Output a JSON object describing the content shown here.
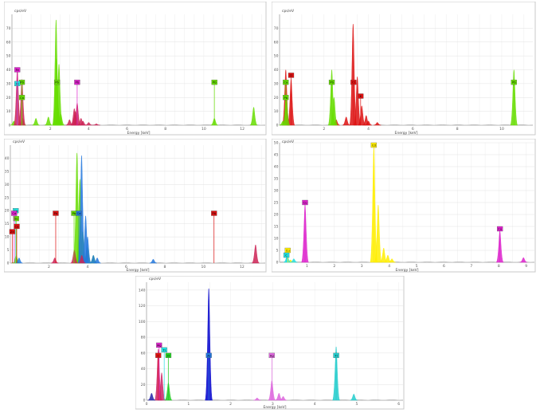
{
  "chart_data": [
    {
      "type": "area",
      "ylabel": "cps/eV",
      "xlabel": "Energy [keV]",
      "xlim": [
        0,
        13.2
      ],
      "ylim": [
        0,
        80
      ],
      "xticks": [
        2,
        4,
        6,
        8,
        10,
        12
      ],
      "yticks": [
        0,
        10,
        20,
        30,
        40,
        50,
        60,
        70
      ],
      "grid": true,
      "series": [
        {
          "color": "#66dd00",
          "values": [
            [
              0.1,
              3
            ],
            [
              0.55,
              5
            ],
            [
              1.25,
              5
            ],
            [
              1.9,
              6
            ],
            [
              2.35,
              2
            ],
            [
              2.32,
              48
            ],
            [
              2.3,
              76
            ],
            [
              2.4,
              14
            ],
            [
              2.45,
              44
            ],
            [
              2.55,
              8
            ],
            [
              10.55,
              5
            ],
            [
              12.6,
              13
            ]
          ]
        },
        {
          "color": "#cc2255",
          "values": [
            [
              0.28,
              40
            ],
            [
              0.52,
              33
            ],
            [
              3.0,
              4
            ],
            [
              3.3,
              3
            ],
            [
              3.25,
              12
            ],
            [
              3.4,
              16
            ],
            [
              3.6,
              5
            ],
            [
              3.3,
              10
            ],
            [
              3.7,
              3
            ],
            [
              4.0,
              2
            ],
            [
              4.4,
              1
            ]
          ]
        }
      ],
      "annotations": [
        "Pb",
        "Cl",
        "Fe",
        "Ca",
        "Pb",
        "Pb",
        "Pb"
      ]
    },
    {
      "type": "area",
      "ylabel": "cps/eV",
      "xlabel": "Energy [keV]",
      "xlim": [
        0,
        11.4
      ],
      "ylim": [
        0,
        80
      ],
      "xticks": [
        2,
        4,
        6,
        8,
        10
      ],
      "yticks": [
        0,
        10,
        20,
        30,
        40,
        50,
        60,
        70
      ],
      "grid": true,
      "series": [
        {
          "color": "#dd1111",
          "values": [
            [
              0.52,
              33
            ],
            [
              0.28,
              40
            ],
            [
              2.55,
              4
            ],
            [
              3.0,
              6
            ],
            [
              3.31,
              73
            ],
            [
              3.5,
              35
            ],
            [
              3.7,
              14
            ],
            [
              3.9,
              7
            ],
            [
              4.0,
              3
            ],
            [
              4.4,
              2
            ]
          ]
        },
        {
          "color": "#66dd00",
          "values": [
            [
              0.15,
              3
            ],
            [
              0.3,
              22
            ],
            [
              2.35,
              40
            ],
            [
              2.45,
              20
            ],
            [
              10.55,
              40
            ]
          ]
        }
      ],
      "annotations": [
        "Ca",
        "Cl",
        "Pb",
        "Pb",
        "Cl",
        "K",
        "Pb"
      ]
    },
    {
      "type": "area",
      "ylabel": "cps/eV",
      "xlabel": "Energy [keV]",
      "xlim": [
        0,
        13.2
      ],
      "ylim": [
        0,
        45
      ],
      "xticks": [
        2,
        4,
        6,
        8,
        10,
        12
      ],
      "yticks": [
        0,
        5,
        10,
        15,
        20,
        25,
        30,
        35,
        40
      ],
      "grid": true,
      "series": [
        {
          "color": "#66dd00",
          "values": [
            [
              3.45,
              42
            ],
            [
              3.55,
              8
            ],
            [
              3.6,
              32
            ],
            [
              3.75,
              12
            ],
            [
              4.0,
              6
            ],
            [
              4.3,
              3
            ],
            [
              0.3,
              3
            ]
          ]
        },
        {
          "color": "#2277dd",
          "values": [
            [
              3.69,
              41
            ],
            [
              3.9,
              18
            ],
            [
              4.0,
              10
            ],
            [
              4.3,
              3
            ],
            [
              4.5,
              2
            ],
            [
              0.45,
              2
            ],
            [
              7.4,
              1.5
            ]
          ]
        },
        {
          "color": "#cc2255",
          "values": [
            [
              2.3,
              2
            ],
            [
              3.31,
              5
            ],
            [
              3.7,
              3
            ],
            [
              12.7,
              7
            ]
          ]
        }
      ],
      "annotations": [
        "Cd",
        "Se",
        "Cd",
        "Zn",
        "Pb",
        "Pb",
        "Cd",
        "Ca",
        "Pb"
      ]
    },
    {
      "type": "area",
      "ylabel": "cps/eV",
      "xlabel": "Energy [keV]",
      "xlim": [
        0,
        9.3
      ],
      "ylim": [
        0,
        50
      ],
      "xticks": [
        1,
        2,
        3,
        4,
        5,
        6,
        7,
        8,
        9
      ],
      "yticks": [
        0,
        5,
        10,
        15,
        20,
        25,
        30,
        35,
        40,
        45,
        50
      ],
      "grid": true,
      "series": [
        {
          "color": "#ffee00",
          "values": [
            [
              3.44,
              48
            ],
            [
              3.6,
              24
            ],
            [
              3.8,
              6
            ],
            [
              3.95,
              3
            ],
            [
              4.1,
              1.5
            ],
            [
              0.4,
              1
            ]
          ]
        },
        {
          "color": "#dd22cc",
          "values": [
            [
              0.93,
              24
            ],
            [
              8.04,
              13
            ],
            [
              8.9,
              2
            ]
          ]
        },
        {
          "color": "#22dddd",
          "values": [
            [
              0.28,
              3
            ],
            [
              0.52,
              1.5
            ]
          ]
        }
      ],
      "annotations": [
        "Cd",
        "Cu",
        "Cu",
        "Cu",
        "C"
      ]
    },
    {
      "type": "area",
      "ylabel": "cps/eV",
      "xlabel": "Energy [keV]",
      "xlim": [
        0,
        6.1
      ],
      "ylim": [
        0,
        150
      ],
      "xticks": [
        0,
        1,
        2,
        3,
        4,
        5,
        6
      ],
      "yticks": [
        0,
        20,
        40,
        60,
        80,
        100,
        120,
        140
      ],
      "grid": true,
      "series": [
        {
          "color": "#0000cc",
          "values": [
            [
              1.48,
              142
            ]
          ]
        },
        {
          "color": "#22cc22",
          "values": [
            [
              0.52,
              22
            ]
          ]
        },
        {
          "color": "#cc2266",
          "values": [
            [
              0.28,
              65
            ],
            [
              0.36,
              35
            ]
          ]
        },
        {
          "color": "#dd66dd",
          "values": [
            [
              2.98,
              25
            ],
            [
              3.15,
              9
            ],
            [
              3.25,
              5
            ],
            [
              2.63,
              3
            ]
          ]
        },
        {
          "color": "#22cccc",
          "values": [
            [
              4.51,
              68
            ],
            [
              4.93,
              8
            ]
          ]
        },
        {
          "color": "#2222aa",
          "values": [
            [
              0.12,
              9
            ]
          ]
        }
      ],
      "annotations": [
        "Mg",
        "Ti",
        "C",
        "O",
        "Al",
        "Ag",
        "Ti"
      ]
    }
  ]
}
